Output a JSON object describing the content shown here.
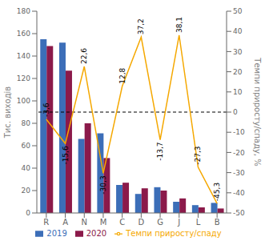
{
  "chart_data": {
    "type": "bar",
    "categories": [
      "R",
      "A",
      "N",
      "M",
      "C",
      "D",
      "G",
      "J",
      "L",
      "B"
    ],
    "series": [
      {
        "name": "2019",
        "type": "bar",
        "color": "#3c6eb8",
        "values": [
          155,
          152,
          66,
          71,
          25,
          17,
          23,
          10,
          7,
          9
        ]
      },
      {
        "name": "2020",
        "type": "bar",
        "color": "#8b1a4a",
        "values": [
          149,
          127,
          80,
          49,
          27,
          22,
          20,
          13,
          5,
          4
        ]
      },
      {
        "name": "Темпи приросту/спаду",
        "type": "line",
        "axis": "y2",
        "color": "#f5a800",
        "values": [
          -3.6,
          -15.6,
          22.6,
          -30.3,
          12.8,
          37.2,
          -13.7,
          38.1,
          -27.3,
          -45.3
        ],
        "value_labels": [
          "-3,6",
          "-15,6",
          "22,6",
          "-30,3",
          "12,8",
          "37,2",
          "-13,7",
          "38,1",
          "-27,3",
          "-45,3"
        ]
      }
    ],
    "y_label": "Тис. виходів",
    "y2_label": "Темпи приросту/спаду, %",
    "ylim": [
      0,
      180
    ],
    "yticks": [
      0,
      20,
      40,
      60,
      80,
      100,
      120,
      140,
      160,
      180
    ],
    "y2lim": [
      -50,
      50
    ],
    "y2ticks": [
      -50,
      -40,
      -30,
      -20,
      -10,
      0,
      10,
      20,
      30,
      40,
      50
    ],
    "reference_lines": [
      {
        "value": 0,
        "axis": "y2",
        "line_style": "dashed",
        "color": "#000000"
      }
    ],
    "data_labels": true,
    "legend": "bottom",
    "grid": false
  }
}
